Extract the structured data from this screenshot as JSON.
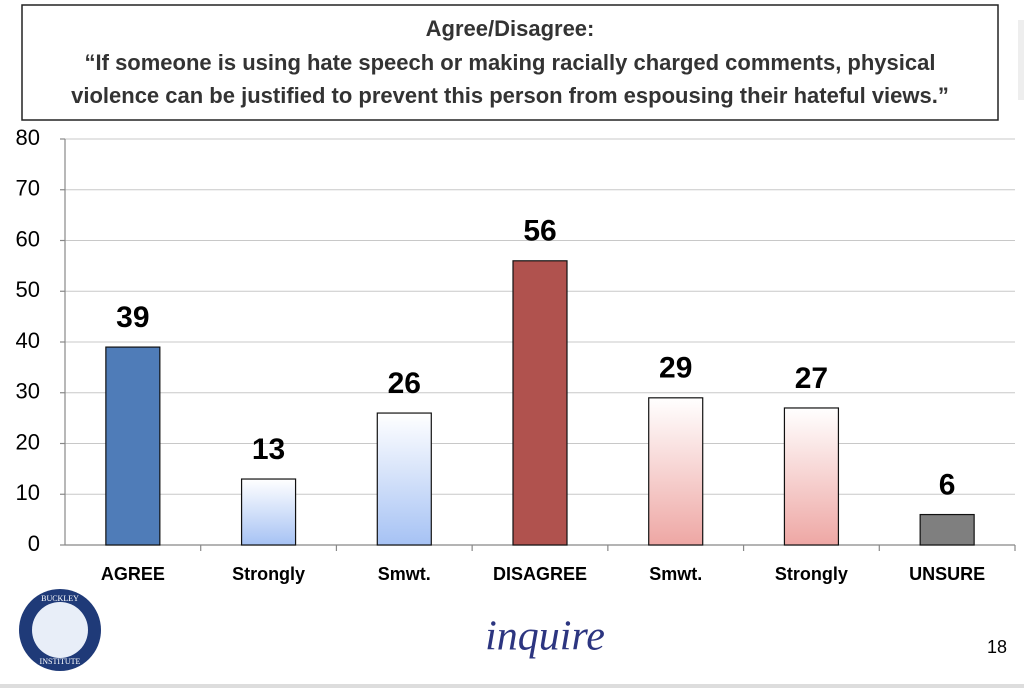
{
  "chart_data": {
    "type": "bar",
    "title": "Agree/Disagree:",
    "subtitle": [
      "“If someone is using hate speech or making racially charged comments, physical",
      "violence can be justified to prevent this person from espousing their hateful views.”"
    ],
    "categories": [
      "AGREE",
      "Strongly",
      "Smwt.",
      "DISAGREE",
      "Smwt.",
      "Strongly",
      "UNSURE"
    ],
    "values": [
      39,
      13,
      26,
      56,
      29,
      27,
      6
    ],
    "colors": [
      "#4f7cb8",
      "#a6c2f4",
      "#a6c2f4",
      "#b0524e",
      "#eea7a4",
      "#eea7a4",
      "#7f7f7f"
    ],
    "gradient": [
      false,
      true,
      true,
      false,
      true,
      true,
      false
    ],
    "ylim": [
      0,
      80
    ],
    "yticks": [
      0,
      10,
      20,
      30,
      40,
      50,
      60,
      70,
      80
    ],
    "grid": true
  },
  "footer": {
    "logo_top": "BUCKLEY",
    "logo_bottom": "INSTITUTE",
    "brand": "inquire",
    "page_number": "18"
  }
}
